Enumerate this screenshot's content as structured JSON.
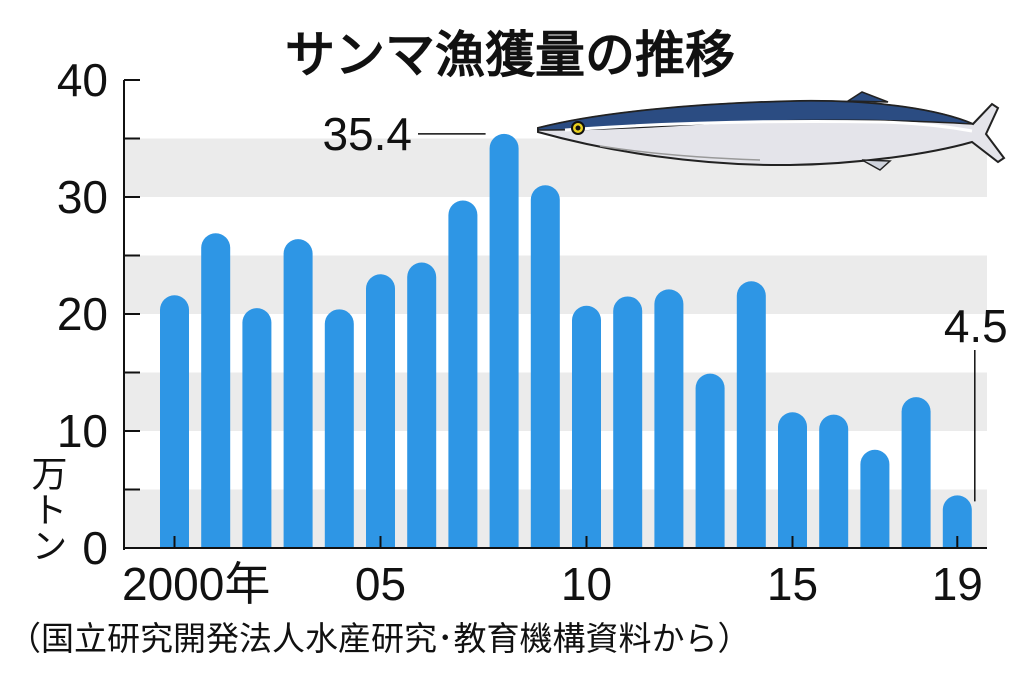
{
  "chart_data": {
    "type": "bar",
    "title": "サンマ漁獲量の推移",
    "ylabel": "万トン",
    "ylim": [
      0,
      40
    ],
    "yticks": [
      "0",
      "10",
      "20",
      "30",
      "40"
    ],
    "x": [
      "2000",
      "2001",
      "2002",
      "2003",
      "2004",
      "2005",
      "2006",
      "2007",
      "2008",
      "2009",
      "2010",
      "2011",
      "2012",
      "2013",
      "2014",
      "2015",
      "2016",
      "2017",
      "2018",
      "2019"
    ],
    "x_tick_labels": [
      {
        "index": 0,
        "label": "2000年"
      },
      {
        "index": 5,
        "label": "05"
      },
      {
        "index": 10,
        "label": "10"
      },
      {
        "index": 15,
        "label": "15"
      },
      {
        "index": 19,
        "label": "19"
      }
    ],
    "values": [
      21.6,
      26.9,
      20.5,
      26.4,
      20.4,
      23.4,
      24.4,
      29.7,
      35.4,
      31.0,
      20.7,
      21.5,
      22.1,
      14.9,
      22.8,
      11.6,
      11.4,
      8.4,
      12.9,
      4.5
    ],
    "annotations": [
      {
        "index": 8,
        "text": "35.4"
      },
      {
        "index": 19,
        "text": "4.5"
      }
    ],
    "bar_color": "#2e96e5",
    "band_color": "#ebebeb",
    "grid": "alternating horizontal bands",
    "source": "（国立研究開発法人水産研究･教育機構資料から）"
  }
}
